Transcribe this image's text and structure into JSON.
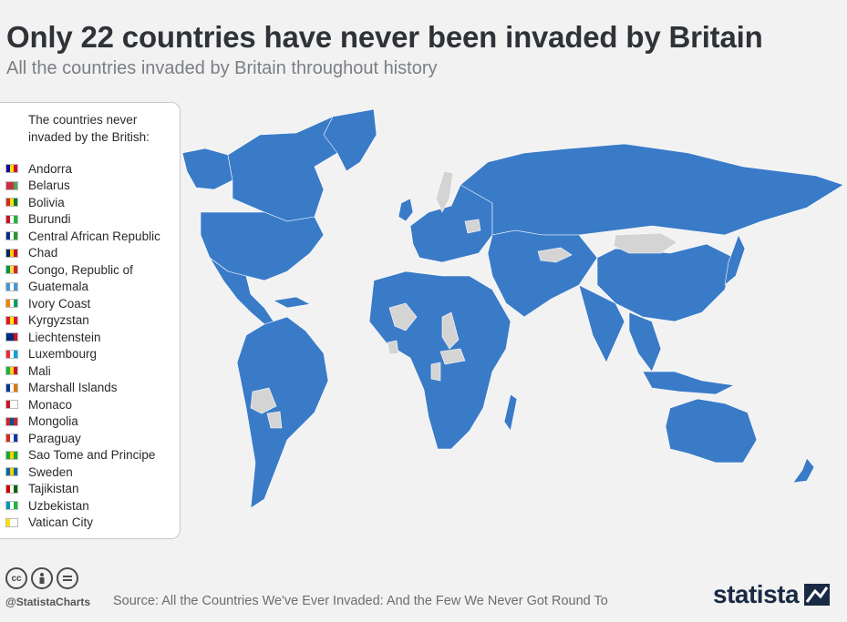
{
  "header": {
    "title": "Only 22 countries have never been invaded by Britain",
    "subtitle": "All the countries invaded by Britain throughout history"
  },
  "legend": {
    "title_line1": "The countries never",
    "title_line2": "invaded by the British:",
    "items": [
      {
        "label": "Andorra",
        "flag": [
          "#10069f",
          "#fedf00",
          "#d50032"
        ]
      },
      {
        "label": "Belarus",
        "flag": [
          "#c8313e",
          "#c8313e",
          "#4aa657"
        ]
      },
      {
        "label": "Bolivia",
        "flag": [
          "#d52b1e",
          "#f9e300",
          "#007934"
        ]
      },
      {
        "label": "Burundi",
        "flag": [
          "#ce1126",
          "#ffffff",
          "#1eb53a"
        ]
      },
      {
        "label": "Central African Republic",
        "flag": [
          "#003082",
          "#ffffff",
          "#289728"
        ]
      },
      {
        "label": "Chad",
        "flag": [
          "#002664",
          "#fecb00",
          "#c60c30"
        ]
      },
      {
        "label": "Congo, Republic of",
        "flag": [
          "#009543",
          "#fbde4a",
          "#dc241f"
        ]
      },
      {
        "label": "Guatemala",
        "flag": [
          "#4997d0",
          "#ffffff",
          "#4997d0"
        ]
      },
      {
        "label": "Ivory Coast",
        "flag": [
          "#f77f00",
          "#ffffff",
          "#009e60"
        ]
      },
      {
        "label": "Kyrgyzstan",
        "flag": [
          "#e8112d",
          "#ffef00",
          "#e8112d"
        ]
      },
      {
        "label": "Liechtenstein",
        "flag": [
          "#002b7f",
          "#002b7f",
          "#ce1126"
        ]
      },
      {
        "label": "Luxembourg",
        "flag": [
          "#ed2939",
          "#ffffff",
          "#00a1de"
        ]
      },
      {
        "label": "Mali",
        "flag": [
          "#14b53a",
          "#fcd116",
          "#ce1126"
        ]
      },
      {
        "label": "Marshall Islands",
        "flag": [
          "#003893",
          "#ffffff",
          "#dd7500"
        ]
      },
      {
        "label": "Monaco",
        "flag": [
          "#ce1126",
          "#ffffff",
          "#ffffff"
        ]
      },
      {
        "label": "Mongolia",
        "flag": [
          "#c4272f",
          "#015197",
          "#c4272f"
        ]
      },
      {
        "label": "Paraguay",
        "flag": [
          "#d52b1e",
          "#ffffff",
          "#0038a8"
        ]
      },
      {
        "label": "Sao Tome and Principe",
        "flag": [
          "#12ad2b",
          "#ffce00",
          "#12ad2b"
        ]
      },
      {
        "label": "Sweden",
        "flag": [
          "#006aa7",
          "#fecc00",
          "#006aa7"
        ]
      },
      {
        "label": "Tajikistan",
        "flag": [
          "#cc0000",
          "#ffffff",
          "#006600"
        ]
      },
      {
        "label": "Uzbekistan",
        "flag": [
          "#0099b5",
          "#ffffff",
          "#1eb53a"
        ]
      },
      {
        "label": "Vatican City",
        "flag": [
          "#ffe000",
          "#ffffff",
          "#ffffff"
        ]
      }
    ]
  },
  "map": {
    "invaded_color": "#3a7bc8",
    "never_invaded_color": "#d4d4d4",
    "background_color": "#f2f2f2"
  },
  "footer": {
    "handle": "@StatistaCharts",
    "source": "Source: All the Countries We've Ever Invaded: And the Few We Never Got Round To",
    "brand": "statista",
    "icons": [
      "cc-icon",
      "by-icon",
      "nd-icon"
    ]
  }
}
